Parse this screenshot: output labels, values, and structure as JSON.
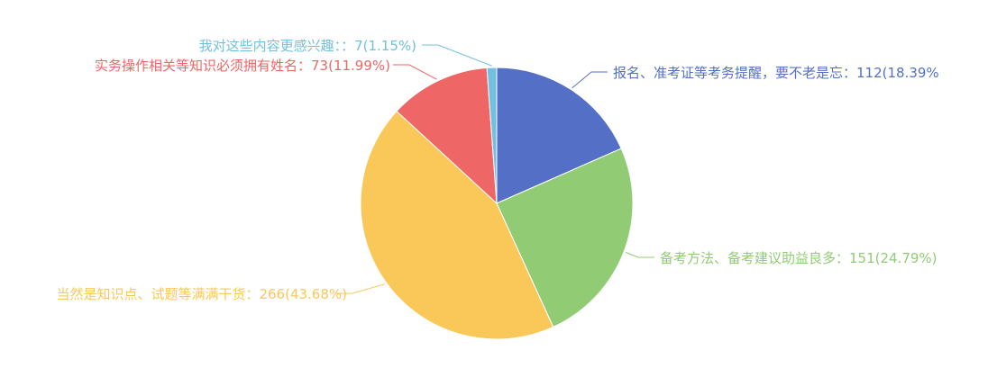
{
  "chart_data": {
    "type": "pie",
    "title": "",
    "slices": [
      {
        "label": "报名、准考证等考务提醒，要不老是忘：112(18.39%",
        "value": 112,
        "percent": 18.39,
        "color": "#5470c6"
      },
      {
        "label": "备考方法、备考建议助益良多：151(24.79%)",
        "value": 151,
        "percent": 24.79,
        "color": "#91cc75"
      },
      {
        "label": "当然是知识点、试题等满满干货：266(43.68%)",
        "value": 266,
        "percent": 43.68,
        "color": "#fac858"
      },
      {
        "label": "实务操作相关等知识必须拥有姓名：73(11.99%)",
        "value": 73,
        "percent": 11.99,
        "color": "#ee6666"
      },
      {
        "label": "我对这些内容更感兴趣：：7(1.15%)",
        "value": 7,
        "percent": 1.15,
        "color": "#73c0de"
      }
    ],
    "legend": "none"
  }
}
